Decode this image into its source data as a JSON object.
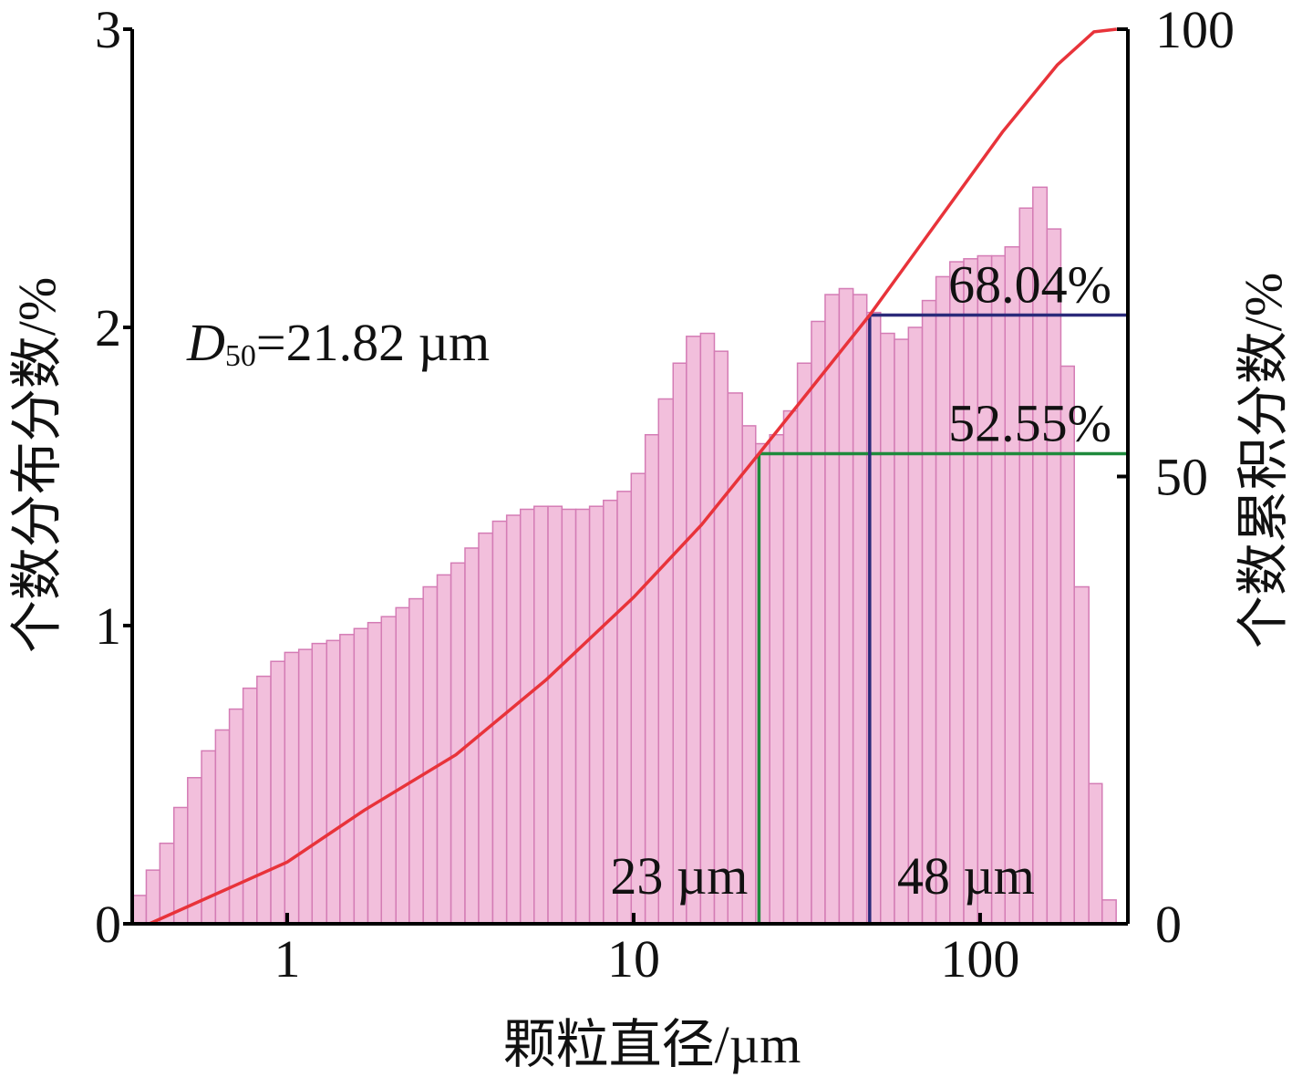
{
  "chart_data": {
    "type": "histogram",
    "x_label": "颗粒直径/µm",
    "y_label": "个数分布分数/%",
    "y2_label": "个数累积分数/%",
    "log_x": true,
    "xlim": [
      0.357,
      267
    ],
    "xticks": [
      1,
      10,
      100
    ],
    "ylim": [
      0,
      3
    ],
    "yticks": [
      0,
      1,
      2,
      3
    ],
    "y2lim": [
      0,
      100
    ],
    "y2ticks": [
      0,
      50,
      100
    ],
    "color": "#f2bfdc",
    "edge_color": "#d47cb5",
    "bins": [
      0.357,
      0.392,
      0.429,
      0.471,
      0.516,
      0.566,
      0.621,
      0.681,
      0.746,
      0.818,
      0.897,
      0.984,
      1.08,
      1.18,
      1.3,
      1.42,
      1.56,
      1.71,
      1.87,
      2.06,
      2.25,
      2.47,
      2.71,
      2.97,
      3.26,
      3.57,
      3.92,
      4.3,
      4.71,
      5.16,
      5.66,
      6.21,
      6.81,
      7.46,
      8.18,
      8.97,
      9.84,
      10.8,
      11.8,
      13.0,
      14.2,
      15.6,
      17.1,
      18.7,
      20.6,
      22.5,
      24.7,
      27.1,
      29.7,
      32.6,
      35.7,
      39.2,
      43.0,
      47.1,
      51.6,
      56.6,
      62.1,
      68.1,
      74.6,
      81.8,
      89.7,
      98.4,
      108,
      118,
      130,
      142,
      156,
      171,
      187,
      206,
      225,
      247
    ],
    "values": [
      0.095,
      0.18,
      0.27,
      0.39,
      0.49,
      0.58,
      0.65,
      0.72,
      0.79,
      0.83,
      0.88,
      0.91,
      0.92,
      0.94,
      0.95,
      0.97,
      0.99,
      1.01,
      1.03,
      1.06,
      1.09,
      1.13,
      1.17,
      1.21,
      1.26,
      1.31,
      1.35,
      1.37,
      1.39,
      1.4,
      1.4,
      1.39,
      1.39,
      1.4,
      1.42,
      1.45,
      1.51,
      1.64,
      1.76,
      1.88,
      1.97,
      1.98,
      1.92,
      1.78,
      1.67,
      1.61,
      1.64,
      1.72,
      1.88,
      2.02,
      2.11,
      2.13,
      2.11,
      2.05,
      1.98,
      1.96,
      2.0,
      2.09,
      2.17,
      2.22,
      2.23,
      2.24,
      2.24,
      2.27,
      2.4,
      2.47,
      2.33,
      1.87,
      1.13,
      0.47,
      0.08
    ],
    "cumulative": {
      "axis": "y2",
      "color": "#e8333a",
      "x": [
        0.4,
        1,
        1.67,
        3.07,
        5.6,
        10,
        15.7,
        23,
        48,
        116,
        167,
        213,
        248
      ],
      "values": [
        0,
        6.9,
        12.7,
        18.9,
        27.3,
        36.5,
        44.6,
        52.55,
        68.04,
        88.5,
        96,
        99.7,
        100
      ]
    },
    "reference_lines": [
      {
        "x": {
          "value": 23,
          "label": "23 µm"
        },
        "y2": {
          "value": 52.55,
          "label": "52.55%"
        },
        "color": "#1e8a3c"
      },
      {
        "x": {
          "value": 48,
          "label": "48 µm"
        },
        "y2": {
          "value": 68.04,
          "label": "68.04%"
        },
        "color": "#2b2a7a"
      }
    ],
    "d50_label": {
      "symbol": "D",
      "subscript": "50",
      "text": "=21.82 µm"
    }
  }
}
